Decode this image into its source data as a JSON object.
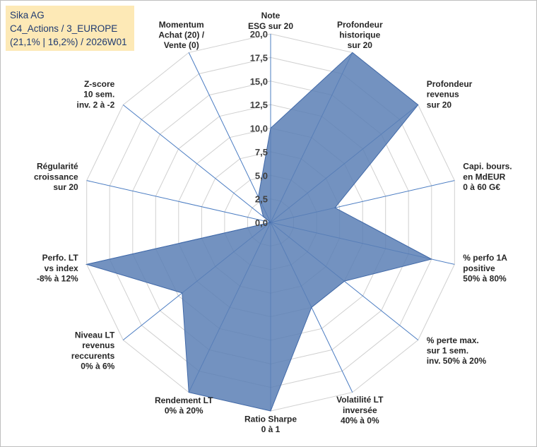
{
  "header": {
    "company": "Sika AG",
    "portfolio": "C4_Actions / 3_EUROPE",
    "stats": "(21,1% | 16,2%) / 2026W01"
  },
  "colors": {
    "fill": "#5b7fb5",
    "stroke": "#4169a8",
    "grid": "#d0d0d0",
    "axis": "#4a7cc2",
    "info_bg": "#fde9b6",
    "info_text": "#1f3a70"
  },
  "chart_data": {
    "type": "radar",
    "max": 20,
    "ticks": [
      "0,0",
      "2,5",
      "5,0",
      "7,5",
      "10,0",
      "12,5",
      "15,0",
      "17,5",
      "20,0"
    ],
    "axes": [
      {
        "lines": [
          "Note",
          "ESG sur 20"
        ],
        "value": 10
      },
      {
        "lines": [
          "Profondeur",
          "historique",
          "sur 20"
        ],
        "value": 20
      },
      {
        "lines": [
          "Profondeur",
          "revenus",
          "sur 20"
        ],
        "value": 20
      },
      {
        "lines": [
          "Capi. bours.",
          "en MdEUR",
          "0 à 60 G€"
        ],
        "value": 7
      },
      {
        "lines": [
          "% perfo 1A",
          "positive",
          "50% à 80%"
        ],
        "value": 17.5
      },
      {
        "lines": [
          "% perte max.",
          "sur 1 sem.",
          "inv. 50% à 20%"
        ],
        "value": 10
      },
      {
        "lines": [
          "Volatilité LT",
          "inversée",
          "40% à 0%"
        ],
        "value": 10
      },
      {
        "lines": [
          "Ratio Sharpe",
          "0 à 1"
        ],
        "value": 20
      },
      {
        "lines": [
          "Rendement LT",
          "0% à 20%"
        ],
        "value": 20
      },
      {
        "lines": [
          "Niveau LT",
          "revenus",
          "reccurents",
          "0% à 6%"
        ],
        "value": 12
      },
      {
        "lines": [
          "Perfo. LT",
          "vs index",
          "-8% à 12%"
        ],
        "value": 20
      },
      {
        "lines": [
          "Régularité",
          "croissance",
          "sur 20"
        ],
        "value": 0
      },
      {
        "lines": [
          "Z-score",
          "10 sem.",
          "inv. 2 à -2"
        ],
        "value": 1
      },
      {
        "lines": [
          "Momentum",
          "Achat (20) /",
          "Vente (0)"
        ],
        "value": 3
      }
    ]
  }
}
